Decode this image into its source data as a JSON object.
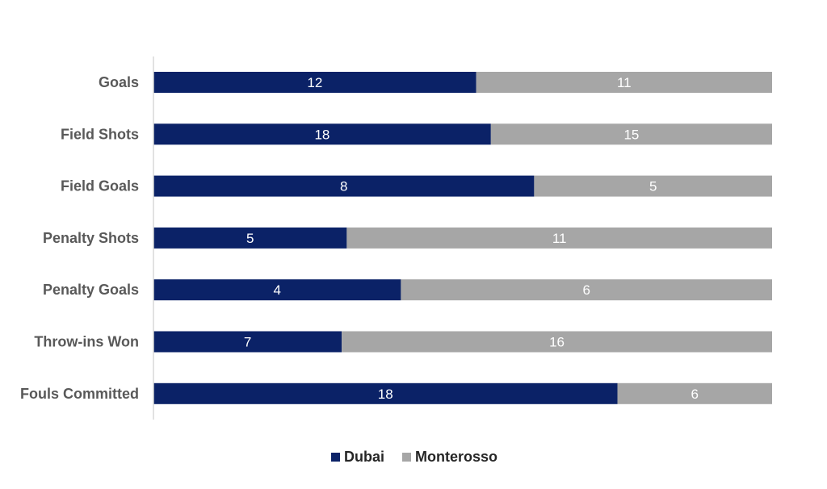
{
  "colors": {
    "series_0": "#0b2267",
    "series_1": "#a6a6a6",
    "axis": "#d9d9d9"
  },
  "chart_data": {
    "type": "bar",
    "orientation": "horizontal",
    "stacking": "percent",
    "categories": [
      "Goals",
      "Field Shots",
      "Field Goals",
      "Penalty Shots",
      "Penalty Goals",
      "Throw-ins Won",
      "Fouls Committed"
    ],
    "series": [
      {
        "name": "Dubai",
        "values": [
          12,
          18,
          8,
          5,
          4,
          7,
          18
        ]
      },
      {
        "name": "Monterosso",
        "values": [
          11,
          15,
          5,
          11,
          6,
          16,
          6
        ]
      }
    ],
    "title": "",
    "xlabel": "",
    "ylabel": "",
    "grid": false,
    "legend_position": "bottom"
  }
}
